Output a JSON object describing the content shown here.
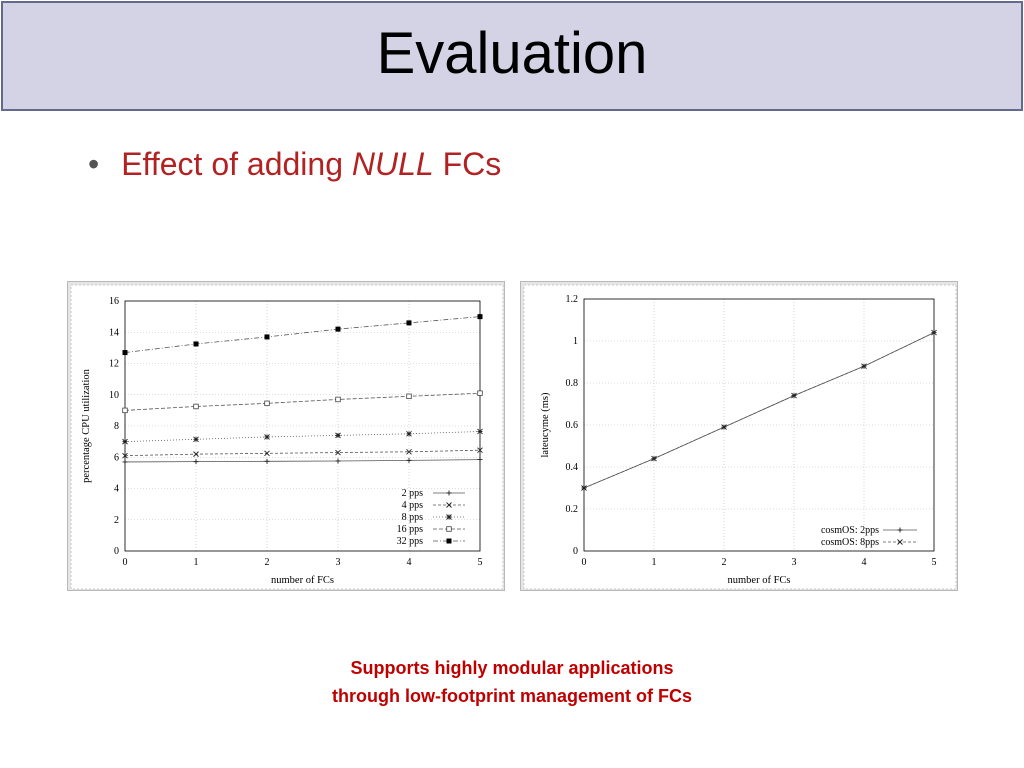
{
  "slide": {
    "title": "Evaluation",
    "bullet": {
      "prefix": "Effect of adding",
      "emphasis": "NULL",
      "suffix": "FCs"
    },
    "caption": {
      "line1": "Supports highly modular applications",
      "line2": "through low-footprint management of FCs"
    }
  },
  "colors": {
    "title_bg": "#d4d3e6",
    "title_border": "#636a8e",
    "bullet_text": "#b22222",
    "caption_text": "#c00000"
  },
  "chart_data": [
    {
      "type": "line",
      "xlabel": "number of FCs",
      "ylabel": "percentage CPU utilization",
      "xlim": [
        0,
        5
      ],
      "ylim": [
        0,
        16
      ],
      "x_ticks": [
        0,
        1,
        2,
        3,
        4,
        5
      ],
      "y_ticks": [
        0,
        2,
        4,
        6,
        8,
        10,
        12,
        14,
        16
      ],
      "grid": true,
      "legend_position": "bottom-right",
      "x": [
        0,
        1,
        2,
        3,
        4,
        5
      ],
      "series": [
        {
          "name": "2 pps",
          "marker": "plus",
          "values": [
            5.7,
            5.72,
            5.74,
            5.76,
            5.8,
            5.85
          ]
        },
        {
          "name": "4 pps",
          "marker": "cross",
          "values": [
            6.1,
            6.2,
            6.25,
            6.3,
            6.35,
            6.45
          ]
        },
        {
          "name": "8 pps",
          "marker": "star",
          "values": [
            7.0,
            7.15,
            7.3,
            7.4,
            7.5,
            7.65
          ]
        },
        {
          "name": "16 pps",
          "marker": "open-square",
          "values": [
            9.0,
            9.25,
            9.45,
            9.7,
            9.9,
            10.1
          ]
        },
        {
          "name": "32 pps",
          "marker": "filled-square",
          "values": [
            12.7,
            13.25,
            13.7,
            14.2,
            14.6,
            15.0
          ]
        }
      ]
    },
    {
      "type": "line",
      "xlabel": "number of FCs",
      "ylabel": "lateucyme (ms)",
      "xlim": [
        0,
        5
      ],
      "ylim": [
        0,
        1.2
      ],
      "x_ticks": [
        0,
        1,
        2,
        3,
        4,
        5
      ],
      "y_ticks": [
        0,
        0.2,
        0.4,
        0.6,
        0.8,
        1,
        1.2
      ],
      "grid": true,
      "legend_position": "bottom-right",
      "x": [
        0,
        1,
        2,
        3,
        4,
        5
      ],
      "series": [
        {
          "name": "cosmOS: 2pps",
          "marker": "plus",
          "values": [
            0.3,
            0.44,
            0.59,
            0.74,
            0.88,
            1.04
          ]
        },
        {
          "name": "cosmOS: 8pps",
          "marker": "cross",
          "values": [
            0.3,
            0.44,
            0.59,
            0.74,
            0.88,
            1.04
          ]
        }
      ]
    }
  ]
}
